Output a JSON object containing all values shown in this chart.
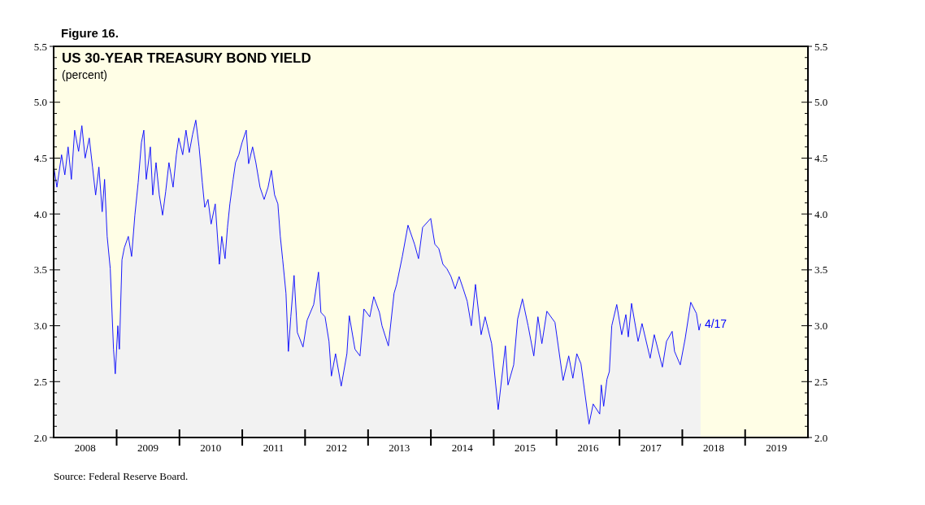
{
  "chart_data": {
    "type": "area",
    "title": "US 30-YEAR TREASURY BOND YIELD",
    "subtitle": "(percent)",
    "annotations": [
      "Figure 16.",
      "Source: Federal Reserve Board.",
      {
        "text": "4/17",
        "x": "2018-04-17",
        "y": 3.02
      }
    ],
    "xlim": [
      "2008-01-01",
      "2020-01-01"
    ],
    "xticks": [
      {
        "value": "2008-07-02",
        "label": "2008"
      },
      {
        "value": "2009-01-01",
        "label": null
      },
      {
        "value": "2009-07-02",
        "label": "2009"
      },
      {
        "value": "2010-01-01",
        "label": null
      },
      {
        "value": "2010-07-02",
        "label": "2010"
      },
      {
        "value": "2011-01-01",
        "label": null
      },
      {
        "value": "2011-07-02",
        "label": "2011"
      },
      {
        "value": "2012-01-01",
        "label": null
      },
      {
        "value": "2012-07-02",
        "label": "2012"
      },
      {
        "value": "2013-01-01",
        "label": null
      },
      {
        "value": "2013-07-02",
        "label": "2013"
      },
      {
        "value": "2014-01-01",
        "label": null
      },
      {
        "value": "2014-07-02",
        "label": "2014"
      },
      {
        "value": "2015-01-01",
        "label": null
      },
      {
        "value": "2015-07-02",
        "label": "2015"
      },
      {
        "value": "2016-01-01",
        "label": null
      },
      {
        "value": "2016-07-02",
        "label": "2016"
      },
      {
        "value": "2017-01-01",
        "label": null
      },
      {
        "value": "2017-07-02",
        "label": "2017"
      },
      {
        "value": "2018-01-01",
        "label": null
      },
      {
        "value": "2018-07-02",
        "label": "2018"
      },
      {
        "value": "2019-01-01",
        "label": null
      },
      {
        "value": "2019-07-02",
        "label": "2019"
      }
    ],
    "ylim": [
      2.0,
      5.5
    ],
    "yticks": [
      {
        "value": 2.0,
        "label": "2.0"
      },
      {
        "value": 2.5,
        "label": "2.5"
      },
      {
        "value": 3.0,
        "label": "3.0"
      },
      {
        "value": 3.5,
        "label": "3.5"
      },
      {
        "value": 4.0,
        "label": "4.0"
      },
      {
        "value": 4.5,
        "label": "4.5"
      },
      {
        "value": 5.0,
        "label": "5.0"
      },
      {
        "value": 5.5,
        "label": "5.5"
      },
      {
        "value": 2.1,
        "label": null
      },
      {
        "value": 2.2,
        "label": null
      },
      {
        "value": 2.3,
        "label": null
      },
      {
        "value": 2.4,
        "label": null
      },
      {
        "value": 2.6,
        "label": null
      },
      {
        "value": 2.7,
        "label": null
      },
      {
        "value": 2.8,
        "label": null
      },
      {
        "value": 2.9,
        "label": null
      },
      {
        "value": 3.1,
        "label": null
      },
      {
        "value": 3.2,
        "label": null
      },
      {
        "value": 3.3,
        "label": null
      },
      {
        "value": 3.4,
        "label": null
      },
      {
        "value": 3.6,
        "label": null
      },
      {
        "value": 3.7,
        "label": null
      },
      {
        "value": 3.8,
        "label": null
      },
      {
        "value": 3.9,
        "label": null
      },
      {
        "value": 4.1,
        "label": null
      },
      {
        "value": 4.2,
        "label": null
      },
      {
        "value": 4.3,
        "label": null
      },
      {
        "value": 4.4,
        "label": null
      },
      {
        "value": 4.6,
        "label": null
      },
      {
        "value": 4.7,
        "label": null
      },
      {
        "value": 4.8,
        "label": null
      },
      {
        "value": 4.9,
        "label": null
      },
      {
        "value": 5.1,
        "label": null
      },
      {
        "value": 5.2,
        "label": null
      },
      {
        "value": 5.3,
        "label": null
      },
      {
        "value": 5.4,
        "label": null
      }
    ],
    "y2lim": [
      2.0,
      5.5
    ],
    "y2ticks": [
      {
        "value": 2.0,
        "label": "2.0"
      },
      {
        "value": 2.5,
        "label": "2.5"
      },
      {
        "value": 3.0,
        "label": "3.0"
      },
      {
        "value": 3.5,
        "label": "3.5"
      },
      {
        "value": 4.0,
        "label": "4.0"
      },
      {
        "value": 4.5,
        "label": "4.5"
      },
      {
        "value": 5.0,
        "label": "5.0"
      },
      {
        "value": 5.5,
        "label": "5.5"
      },
      {
        "value": 2.1,
        "label": null
      },
      {
        "value": 2.2,
        "label": null
      },
      {
        "value": 2.3,
        "label": null
      },
      {
        "value": 2.4,
        "label": null
      },
      {
        "value": 2.6,
        "label": null
      },
      {
        "value": 2.7,
        "label": null
      },
      {
        "value": 2.8,
        "label": null
      },
      {
        "value": 2.9,
        "label": null
      },
      {
        "value": 3.1,
        "label": null
      },
      {
        "value": 3.2,
        "label": null
      },
      {
        "value": 3.3,
        "label": null
      },
      {
        "value": 3.4,
        "label": null
      },
      {
        "value": 3.6,
        "label": null
      },
      {
        "value": 3.7,
        "label": null
      },
      {
        "value": 3.8,
        "label": null
      },
      {
        "value": 3.9,
        "label": null
      },
      {
        "value": 4.1,
        "label": null
      },
      {
        "value": 4.2,
        "label": null
      },
      {
        "value": 4.3,
        "label": null
      },
      {
        "value": 4.4,
        "label": null
      },
      {
        "value": 4.6,
        "label": null
      },
      {
        "value": 4.7,
        "label": null
      },
      {
        "value": 4.8,
        "label": null
      },
      {
        "value": 4.9,
        "label": null
      },
      {
        "value": 5.1,
        "label": null
      },
      {
        "value": 5.2,
        "label": null
      },
      {
        "value": 5.3,
        "label": null
      },
      {
        "value": 5.4,
        "label": null
      }
    ],
    "series": [
      {
        "color": "#0000ff",
        "x": [
          "2008-01-02",
          "2008-01-20",
          "2008-02-16",
          "2008-03-06",
          "2008-03-25",
          "2008-04-13",
          "2008-05-02",
          "2008-05-25",
          "2008-06-13",
          "2008-07-02",
          "2008-07-26",
          "2008-08-14",
          "2008-09-01",
          "2008-09-20",
          "2008-10-09",
          "2008-10-23",
          "2008-11-07",
          "2008-11-25",
          "2008-12-14",
          "2008-12-24",
          "2009-01-08",
          "2009-01-17",
          "2009-02-01",
          "2009-02-15",
          "2009-03-10",
          "2009-03-29",
          "2009-04-17",
          "2009-05-06",
          "2009-05-25",
          "2009-06-08",
          "2009-06-22",
          "2009-07-16",
          "2009-07-30",
          "2009-08-18",
          "2009-09-06",
          "2009-09-25",
          "2009-10-13",
          "2009-11-01",
          "2009-11-25",
          "2009-12-14",
          "2009-12-28",
          "2010-01-20",
          "2010-02-08",
          "2010-02-27",
          "2010-03-18",
          "2010-04-06",
          "2010-04-25",
          "2010-05-14",
          "2010-05-28",
          "2010-06-16",
          "2010-07-04",
          "2010-07-28",
          "2010-08-21",
          "2010-09-04",
          "2010-09-23",
          "2010-10-07",
          "2010-10-21",
          "2010-11-09",
          "2010-11-23",
          "2010-12-12",
          "2010-12-31",
          "2011-01-24",
          "2011-02-07",
          "2011-03-02",
          "2011-03-21",
          "2011-04-14",
          "2011-05-08",
          "2011-05-31",
          "2011-06-19",
          "2011-07-08",
          "2011-07-27",
          "2011-08-10",
          "2011-08-24",
          "2011-09-12",
          "2011-09-26",
          "2011-10-10",
          "2011-10-29",
          "2011-11-17",
          "2011-12-20",
          "2012-01-13",
          "2012-02-20",
          "2012-03-19",
          "2012-04-02",
          "2012-04-26",
          "2012-05-19",
          "2012-06-02",
          "2012-06-26",
          "2012-07-29",
          "2012-08-31",
          "2012-09-14",
          "2012-10-17",
          "2012-11-15",
          "2012-12-08",
          "2013-01-11",
          "2013-02-03",
          "2013-03-08",
          "2013-03-23",
          "2013-04-29",
          "2013-06-01",
          "2013-06-16",
          "2013-07-19",
          "2013-08-21",
          "2013-09-28",
          "2013-10-21",
          "2013-11-14",
          "2013-12-31",
          "2014-01-24",
          "2014-02-16",
          "2014-03-12",
          "2014-04-04",
          "2014-04-28",
          "2014-05-22",
          "2014-06-14",
          "2014-07-08",
          "2014-07-31",
          "2014-08-24",
          "2014-09-17",
          "2014-10-20",
          "2014-11-12",
          "2014-12-20",
          "2015-01-27",
          "2015-03-10",
          "2015-03-25",
          "2015-04-27",
          "2015-05-20",
          "2015-06-17",
          "2015-07-20",
          "2015-08-22",
          "2015-09-15",
          "2015-10-08",
          "2015-11-06",
          "2015-12-23",
          "2016-02-08",
          "2016-03-12",
          "2016-04-05",
          "2016-04-28",
          "2016-05-22",
          "2016-07-08",
          "2016-08-01",
          "2016-09-08",
          "2016-09-17",
          "2016-10-01",
          "2016-10-20",
          "2016-11-03",
          "2016-11-17",
          "2016-12-16",
          "2017-01-14",
          "2017-02-07",
          "2017-02-21",
          "2017-03-12",
          "2017-04-19",
          "2017-05-12",
          "2017-06-28",
          "2017-07-22",
          "2017-09-07",
          "2017-10-01",
          "2017-11-03",
          "2017-11-17",
          "2017-12-20",
          "2018-01-17",
          "2018-02-19",
          "2018-03-24",
          "2018-04-08",
          "2018-04-17"
        ],
        "values": [
          4.42,
          4.24,
          4.53,
          4.35,
          4.6,
          4.31,
          4.75,
          4.56,
          4.79,
          4.5,
          4.68,
          4.42,
          4.17,
          4.42,
          4.02,
          4.31,
          3.8,
          3.51,
          2.79,
          2.57,
          3.0,
          2.79,
          3.59,
          3.7,
          3.8,
          3.62,
          3.99,
          4.28,
          4.64,
          4.75,
          4.31,
          4.6,
          4.17,
          4.46,
          4.17,
          3.99,
          4.2,
          4.46,
          4.24,
          4.53,
          4.68,
          4.53,
          4.75,
          4.55,
          4.71,
          4.84,
          4.6,
          4.28,
          4.06,
          4.13,
          3.91,
          4.09,
          3.55,
          3.8,
          3.6,
          3.88,
          4.09,
          4.31,
          4.46,
          4.53,
          4.64,
          4.75,
          4.45,
          4.6,
          4.46,
          4.24,
          4.13,
          4.24,
          4.39,
          4.17,
          4.09,
          3.8,
          3.59,
          3.29,
          2.77,
          3.08,
          3.45,
          2.94,
          2.81,
          3.05,
          3.19,
          3.48,
          3.12,
          3.08,
          2.86,
          2.55,
          2.75,
          2.46,
          2.75,
          3.09,
          2.79,
          2.73,
          3.15,
          3.08,
          3.26,
          3.12,
          3.0,
          2.82,
          3.29,
          3.37,
          3.62,
          3.9,
          3.73,
          3.6,
          3.88,
          3.96,
          3.73,
          3.69,
          3.55,
          3.51,
          3.44,
          3.33,
          3.44,
          3.33,
          3.22,
          3.0,
          3.37,
          2.92,
          3.08,
          2.84,
          2.25,
          2.82,
          2.47,
          2.65,
          3.06,
          3.24,
          3.0,
          2.73,
          3.08,
          2.84,
          3.13,
          3.03,
          2.51,
          2.73,
          2.53,
          2.75,
          2.66,
          2.12,
          2.3,
          2.21,
          2.47,
          2.28,
          2.52,
          2.59,
          3.0,
          3.19,
          2.92,
          3.1,
          2.9,
          3.2,
          2.86,
          3.02,
          2.71,
          2.92,
          2.63,
          2.86,
          2.95,
          2.77,
          2.65,
          2.88,
          3.21,
          3.11,
          2.96,
          3.02
        ]
      }
    ]
  }
}
